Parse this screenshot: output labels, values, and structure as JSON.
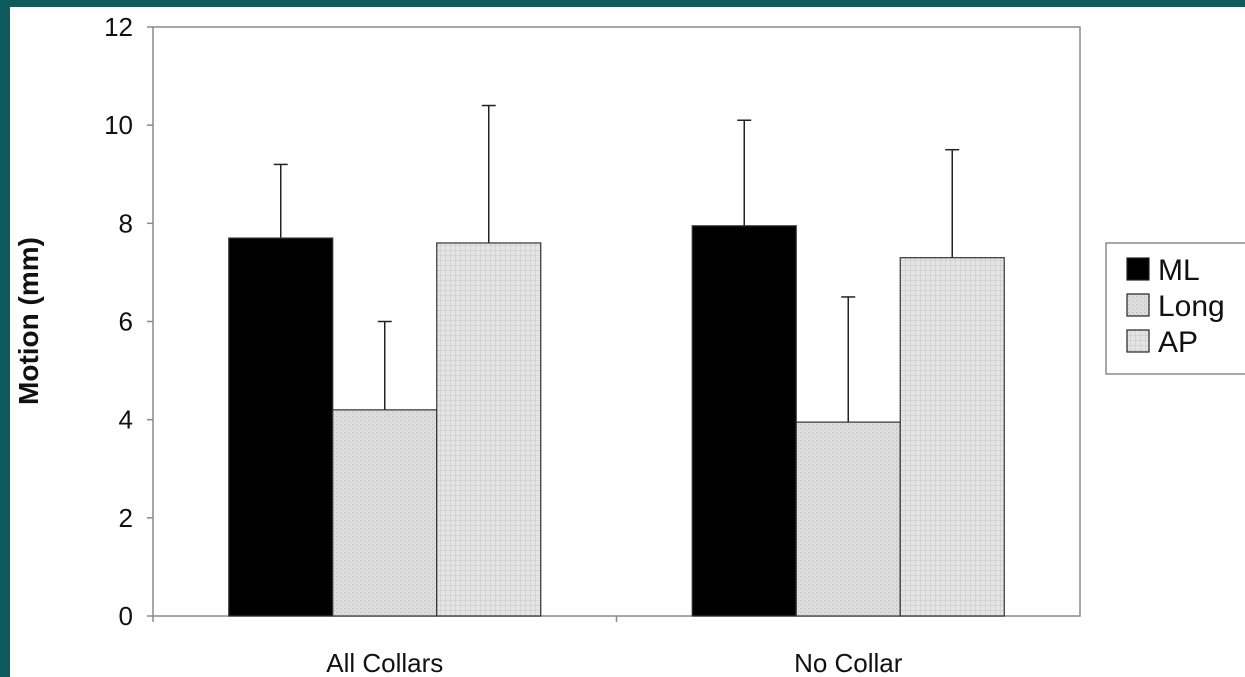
{
  "chart_data": {
    "type": "bar",
    "title": "",
    "xlabel": "",
    "ylabel": "Motion (mm)",
    "ylim": [
      0,
      12
    ],
    "yticks": [
      "0",
      "2",
      "4",
      "6",
      "8",
      "10",
      "12"
    ],
    "grid": false,
    "legend_position": "right",
    "categories": [
      "All Collars",
      "No Collar"
    ],
    "series": [
      {
        "name": "ML",
        "values": [
          7.7,
          7.95
        ],
        "error": [
          1.5,
          2.15
        ],
        "color": "#000000",
        "pattern": "solid"
      },
      {
        "name": "Long",
        "values": [
          4.2,
          3.95
        ],
        "error": [
          1.8,
          2.55
        ],
        "color": "#d9d9d9",
        "pattern": "fine-dots"
      },
      {
        "name": "AP",
        "values": [
          7.6,
          7.3
        ],
        "error": [
          2.8,
          2.2
        ],
        "color": "#e2e2e2",
        "pattern": "grid"
      }
    ]
  }
}
